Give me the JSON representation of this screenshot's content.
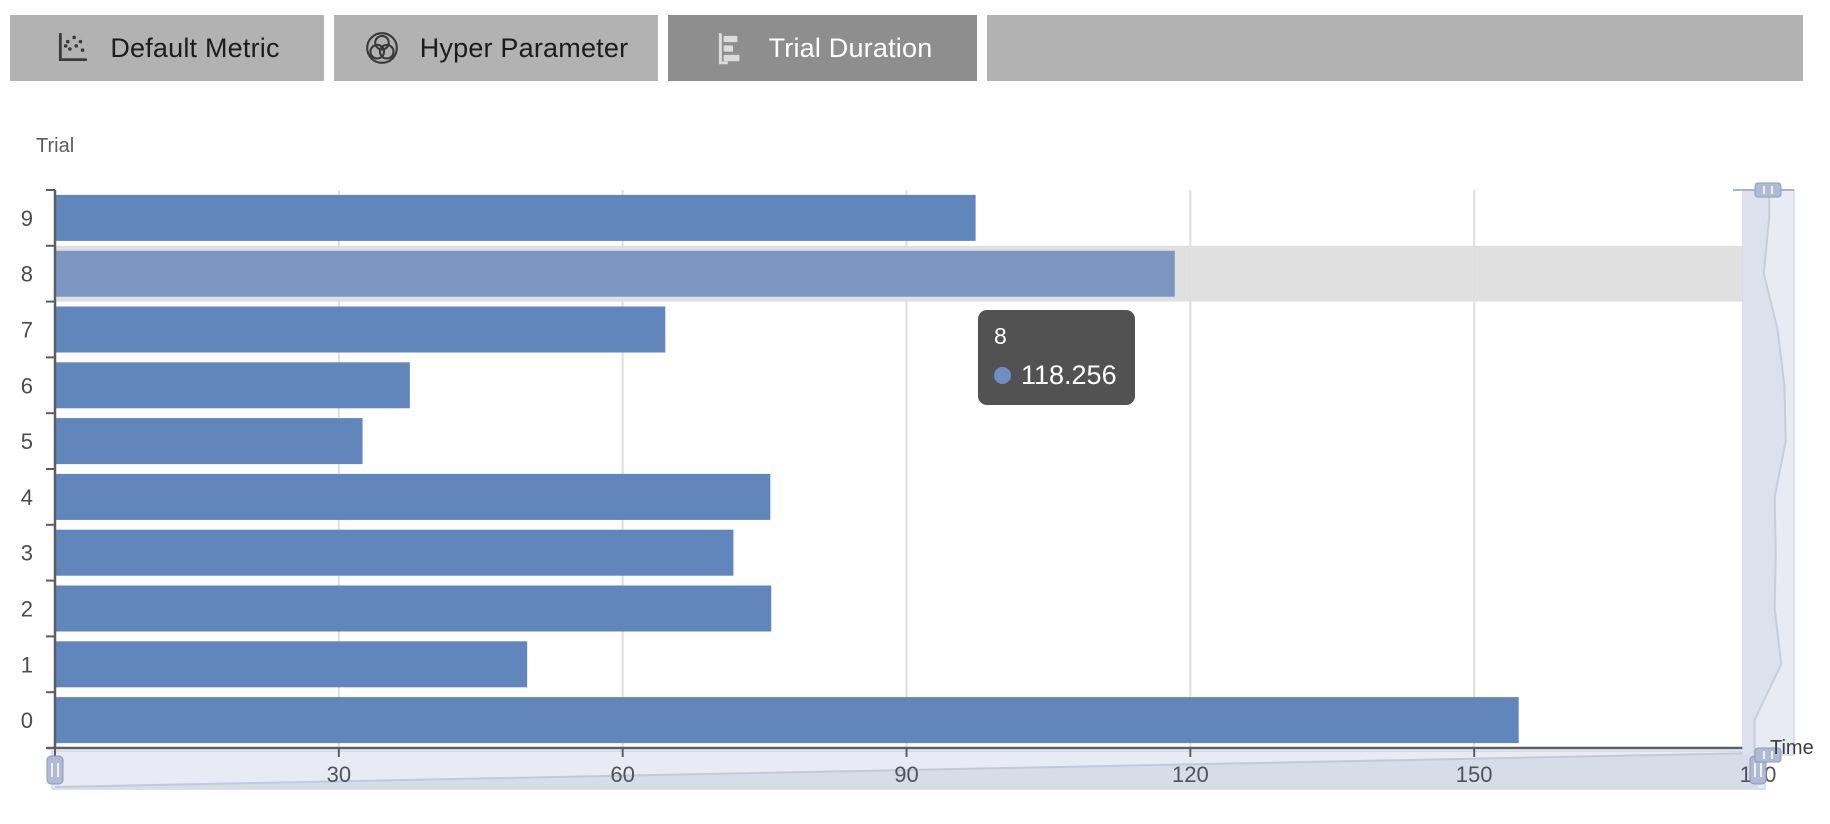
{
  "tabs": {
    "items": [
      {
        "id": "default-metric",
        "label": "Default Metric",
        "icon": "scatter-plot-icon",
        "active": false
      },
      {
        "id": "hyper-parameter",
        "label": "Hyper Parameter",
        "icon": "venn-diagram-icon",
        "active": false
      },
      {
        "id": "trial-duration",
        "label": "Trial Duration",
        "icon": "horizontal-bar-chart-icon",
        "active": true
      }
    ],
    "colors": {
      "bar_bg": "#b2b2b2",
      "active_bg": "#8e8e8e",
      "inactive_text": "#1c1c1c",
      "active_text": "#ffffff"
    }
  },
  "tooltip": {
    "title": "8",
    "value": "118.256",
    "dot_color": "#6d8fc1",
    "bg": "#525252"
  },
  "chart_data": {
    "type": "bar",
    "orientation": "horizontal",
    "title": "",
    "ylabel": "Trial",
    "xlabel": "Time",
    "categories": [
      "9",
      "8",
      "7",
      "6",
      "5",
      "4",
      "3",
      "2",
      "1",
      "0"
    ],
    "values": [
      97.2,
      118.256,
      64.4,
      37.4,
      32.4,
      75.5,
      71.6,
      75.6,
      49.8,
      154.6
    ],
    "x_ticks": [
      0,
      30,
      60,
      90,
      120,
      150,
      180
    ],
    "xlim": [
      0,
      180
    ],
    "grid": "vertical-gridlines-only",
    "legend": "none",
    "highlighted_category": "8",
    "highlighted_value": 118.256,
    "bar_color": "#6186bc",
    "highlight_bar_color": "#7b97c1",
    "highlight_row_color": "#e0e0e0",
    "gridline_color": "#dedede",
    "axis_color": "#5a5e69",
    "label_color": "#4c4c4c",
    "data_zoom": {
      "horizontal": true,
      "vertical": true,
      "track_color": "#e9ebf4",
      "handle_color": "#b0bad4"
    }
  }
}
